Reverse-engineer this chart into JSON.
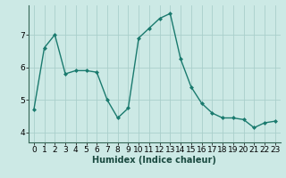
{
  "x": [
    0,
    1,
    2,
    3,
    4,
    5,
    6,
    7,
    8,
    9,
    10,
    11,
    12,
    13,
    14,
    15,
    16,
    17,
    18,
    19,
    20,
    21,
    22,
    23
  ],
  "y": [
    4.7,
    6.6,
    7.0,
    5.8,
    5.9,
    5.9,
    5.85,
    5.0,
    4.45,
    4.75,
    6.9,
    7.2,
    7.5,
    7.65,
    6.25,
    5.4,
    4.9,
    4.6,
    4.45,
    4.45,
    4.4,
    4.15,
    4.3,
    4.35
  ],
  "line_color": "#1a7a6e",
  "marker": "D",
  "marker_size": 2.0,
  "linewidth": 1.0,
  "xlabel": "Humidex (Indice chaleur)",
  "ylim": [
    3.7,
    7.9
  ],
  "xlim": [
    -0.5,
    23.5
  ],
  "yticks": [
    4,
    5,
    6,
    7
  ],
  "xticks": [
    0,
    1,
    2,
    3,
    4,
    5,
    6,
    7,
    8,
    9,
    10,
    11,
    12,
    13,
    14,
    15,
    16,
    17,
    18,
    19,
    20,
    21,
    22,
    23
  ],
  "bg_color": "#cce9e5",
  "grid_color": "#aacfcb",
  "xlabel_fontsize": 7,
  "tick_fontsize": 6.5,
  "spine_color": "#336655"
}
